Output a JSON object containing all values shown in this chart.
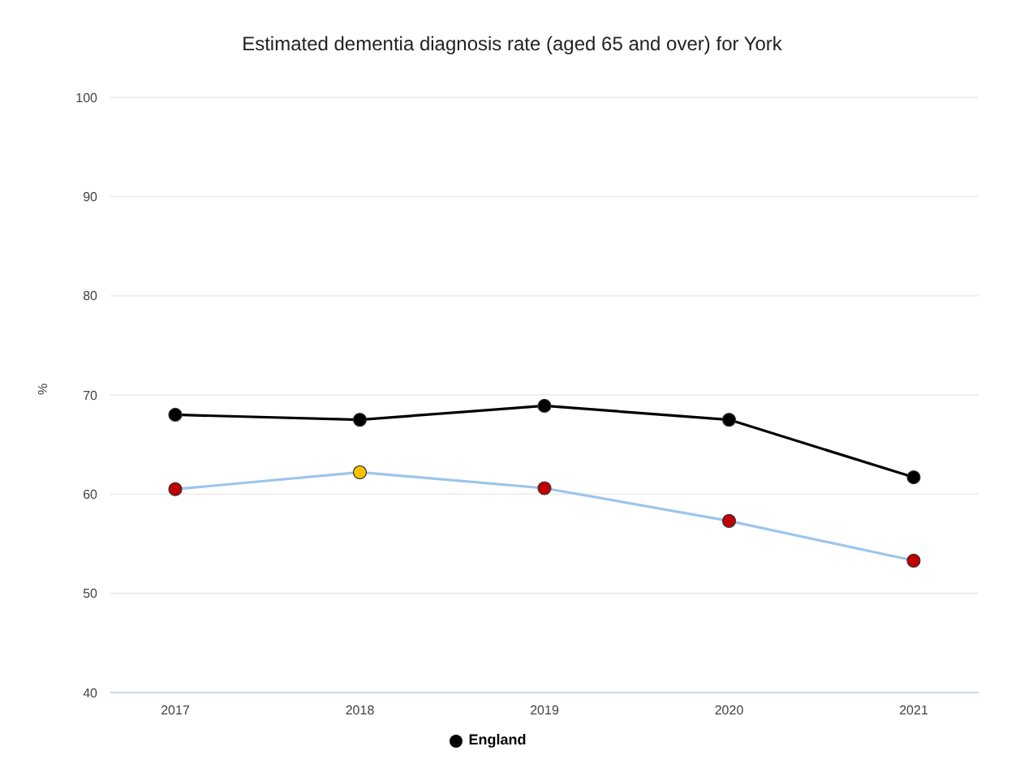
{
  "chart_data": {
    "type": "line",
    "title": "Estimated dementia diagnosis rate (aged 65 and over) for York",
    "ylabel": "%",
    "categories": [
      "2017",
      "2018",
      "2019",
      "2020",
      "2021"
    ],
    "series": [
      {
        "color": "#9cc5ec",
        "colors": [
          "#c00000",
          "#ffc000",
          "#c00000",
          "#c00000",
          "#c00000"
        ],
        "values": [
          60.5,
          62.2,
          60.6,
          57.3,
          53.3
        ]
      },
      {
        "name": "England",
        "color": "#000000",
        "values": [
          68.0,
          67.5,
          68.9,
          67.5,
          61.7
        ]
      }
    ],
    "ylim": [
      40,
      100
    ],
    "yticks": [
      40,
      50,
      60,
      70,
      80,
      90,
      100
    ],
    "grid": "y",
    "legend": "bottom",
    "marker": "circle"
  }
}
